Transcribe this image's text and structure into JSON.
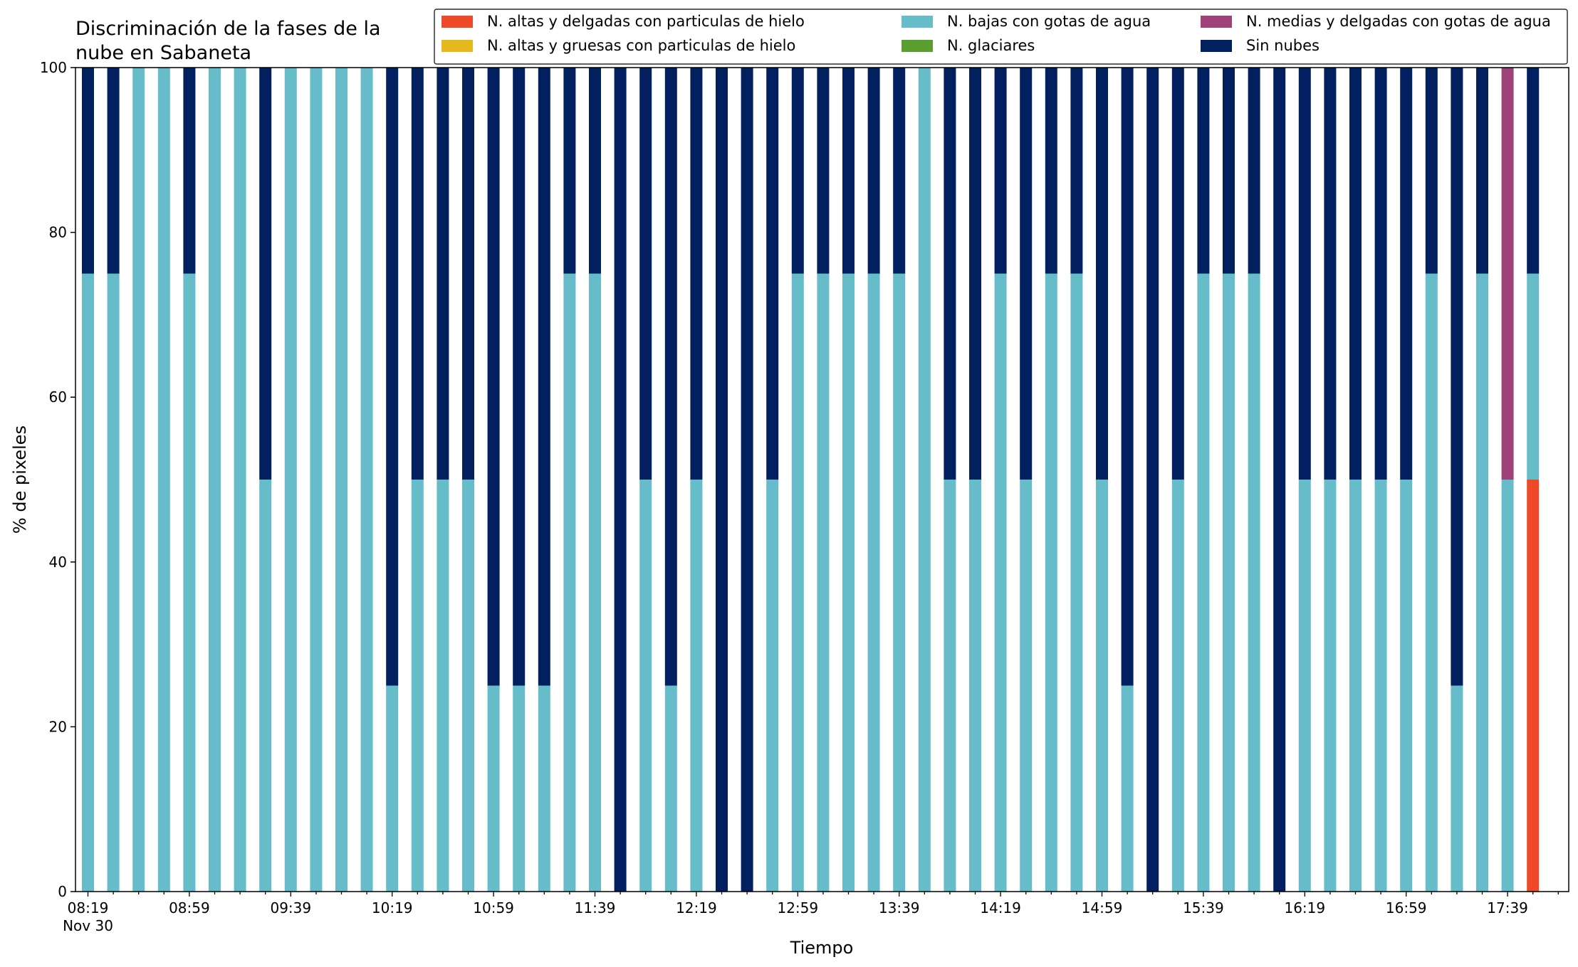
{
  "chart_data": {
    "type": "bar",
    "stacked": true,
    "title_lines": [
      "Discriminación de la fases de la",
      "nube en Sabaneta"
    ],
    "xlabel": "Tiempo",
    "ylabel": "% de pixeles",
    "ylim": [
      0,
      100
    ],
    "yticks": [
      0,
      20,
      40,
      60,
      80,
      100
    ],
    "x": [
      "08:19",
      "08:29",
      "08:39",
      "08:49",
      "08:59",
      "09:09",
      "09:19",
      "09:29",
      "09:39",
      "09:49",
      "09:59",
      "10:09",
      "10:19",
      "10:29",
      "10:39",
      "10:49",
      "10:59",
      "11:09",
      "11:19",
      "11:29",
      "11:39",
      "11:49",
      "11:59",
      "12:09",
      "12:19",
      "12:29",
      "12:39",
      "12:49",
      "12:59",
      "13:09",
      "13:19",
      "13:29",
      "13:39",
      "13:49",
      "13:59",
      "14:09",
      "14:19",
      "14:29",
      "14:39",
      "14:49",
      "14:59",
      "15:09",
      "15:19",
      "15:29",
      "15:39",
      "15:49",
      "15:59",
      "16:09",
      "16:19",
      "16:29",
      "16:39",
      "16:49",
      "16:59",
      "17:09",
      "17:19",
      "17:29",
      "17:39",
      "17:49"
    ],
    "xtick_labels": [
      {
        "index": 0,
        "label": "08:19",
        "sublabel": "Nov 30"
      },
      {
        "index": 4,
        "label": "08:59"
      },
      {
        "index": 8,
        "label": "09:39"
      },
      {
        "index": 12,
        "label": "10:19"
      },
      {
        "index": 16,
        "label": "10:59"
      },
      {
        "index": 20,
        "label": "11:39"
      },
      {
        "index": 24,
        "label": "12:19"
      },
      {
        "index": 28,
        "label": "12:59"
      },
      {
        "index": 32,
        "label": "13:39"
      },
      {
        "index": 36,
        "label": "14:19"
      },
      {
        "index": 40,
        "label": "14:59"
      },
      {
        "index": 44,
        "label": "15:39"
      },
      {
        "index": 48,
        "label": "16:19"
      },
      {
        "index": 52,
        "label": "16:59"
      },
      {
        "index": 56,
        "label": "17:39"
      }
    ],
    "legend_position": "top-right",
    "legend_columns": 3,
    "series": [
      {
        "name": "N. altas y delgadas con particulas de hielo",
        "color": "#EE4A29",
        "values": [
          0,
          0,
          0,
          0,
          0,
          0,
          0,
          0,
          0,
          0,
          0,
          0,
          0,
          0,
          0,
          0,
          0,
          0,
          0,
          0,
          0,
          0,
          0,
          0,
          0,
          0,
          0,
          0,
          0,
          0,
          0,
          0,
          0,
          0,
          0,
          0,
          0,
          0,
          0,
          0,
          0,
          0,
          0,
          0,
          0,
          0,
          0,
          0,
          0,
          0,
          0,
          0,
          0,
          0,
          0,
          0,
          0,
          50
        ]
      },
      {
        "name": "N. altas y gruesas con particulas de hielo",
        "color": "#E5B81B",
        "values": [
          0,
          0,
          0,
          0,
          0,
          0,
          0,
          0,
          0,
          0,
          0,
          0,
          0,
          0,
          0,
          0,
          0,
          0,
          0,
          0,
          0,
          0,
          0,
          0,
          0,
          0,
          0,
          0,
          0,
          0,
          0,
          0,
          0,
          0,
          0,
          0,
          0,
          0,
          0,
          0,
          0,
          0,
          0,
          0,
          0,
          0,
          0,
          0,
          0,
          0,
          0,
          0,
          0,
          0,
          0,
          0,
          0,
          0
        ]
      },
      {
        "name": "N. bajas con gotas de agua",
        "color": "#66BDC9",
        "values": [
          75,
          75,
          100,
          100,
          75,
          100,
          100,
          50,
          100,
          100,
          100,
          100,
          25,
          50,
          50,
          50,
          25,
          25,
          25,
          75,
          75,
          0,
          50,
          25,
          50,
          0,
          0,
          50,
          75,
          75,
          75,
          75,
          75,
          100,
          50,
          50,
          75,
          50,
          75,
          75,
          50,
          25,
          0,
          50,
          75,
          75,
          75,
          0,
          50,
          50,
          50,
          50,
          50,
          75,
          25,
          75,
          50,
          25
        ]
      },
      {
        "name": "N. glaciares",
        "color": "#5A9E2F",
        "values": [
          0,
          0,
          0,
          0,
          0,
          0,
          0,
          0,
          0,
          0,
          0,
          0,
          0,
          0,
          0,
          0,
          0,
          0,
          0,
          0,
          0,
          0,
          0,
          0,
          0,
          0,
          0,
          0,
          0,
          0,
          0,
          0,
          0,
          0,
          0,
          0,
          0,
          0,
          0,
          0,
          0,
          0,
          0,
          0,
          0,
          0,
          0,
          0,
          0,
          0,
          0,
          0,
          0,
          0,
          0,
          0,
          0,
          0
        ]
      },
      {
        "name": "N. medias y delgadas con gotas de agua",
        "color": "#A0427A",
        "values": [
          0,
          0,
          0,
          0,
          0,
          0,
          0,
          0,
          0,
          0,
          0,
          0,
          0,
          0,
          0,
          0,
          0,
          0,
          0,
          0,
          0,
          0,
          0,
          0,
          0,
          0,
          0,
          0,
          0,
          0,
          0,
          0,
          0,
          0,
          0,
          0,
          0,
          0,
          0,
          0,
          0,
          0,
          0,
          0,
          0,
          0,
          0,
          0,
          0,
          0,
          0,
          0,
          0,
          0,
          0,
          0,
          50,
          0
        ]
      },
      {
        "name": "Sin nubes",
        "color": "#02205F",
        "values": [
          25,
          25,
          0,
          0,
          25,
          0,
          0,
          50,
          0,
          0,
          0,
          0,
          75,
          50,
          50,
          50,
          75,
          75,
          75,
          25,
          25,
          100,
          50,
          75,
          50,
          100,
          100,
          50,
          25,
          25,
          25,
          25,
          25,
          0,
          50,
          50,
          25,
          50,
          25,
          25,
          50,
          75,
          100,
          50,
          25,
          25,
          25,
          100,
          50,
          50,
          50,
          50,
          50,
          25,
          75,
          25,
          0,
          25
        ]
      }
    ]
  }
}
